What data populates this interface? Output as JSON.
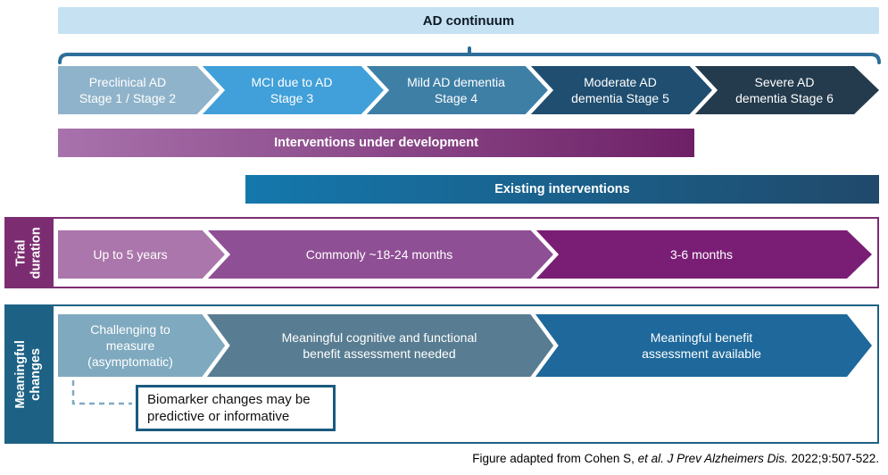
{
  "header": {
    "title": "AD continuum",
    "bg": "#C5E1F2",
    "text_color": "#0E1A26"
  },
  "brace": {
    "color": "#2E6E99"
  },
  "stages": {
    "items": [
      {
        "label": "Preclinical AD\nStage 1 / Stage 2",
        "color": "#8FB3CA"
      },
      {
        "label": "MCI due to AD\nStage 3",
        "color": "#41A0D9"
      },
      {
        "label": "Mild AD dementia\nStage 4",
        "color": "#3E7FA6"
      },
      {
        "label": "Moderate AD\ndementia Stage 5",
        "color": "#1F4E70"
      },
      {
        "label": "Severe AD\ndementia Stage 6",
        "color": "#243B4D"
      }
    ]
  },
  "interventions": {
    "development": {
      "label": "Interventions under development",
      "gradient": [
        "#A872AC",
        "#6E2066"
      ]
    },
    "existing": {
      "label": "Existing interventions",
      "gradient": [
        "#1478AC",
        "#20496B"
      ]
    }
  },
  "trial": {
    "sidebar_label": "Trial\nduration",
    "accent": "#7C2D72",
    "items": [
      {
        "label": "Up to 5 years",
        "color": "#AB76AB"
      },
      {
        "label": "Commonly ~18-24 months",
        "color": "#8F4F95"
      },
      {
        "label": "3-6 months",
        "color": "#7A1E75"
      }
    ]
  },
  "meaningful": {
    "sidebar_label": "Meaningful\nchanges",
    "accent": "#1D6285",
    "items": [
      {
        "label": "Challenging to\nmeasure\n(asymptomatic)",
        "color": "#7FA9BF"
      },
      {
        "label": "Meaningful cognitive and functional\nbenefit assessment needed",
        "color": "#587D92"
      },
      {
        "label": "Meaningful benefit\nassessment available",
        "color": "#1E689B"
      }
    ],
    "connector_color": "#7FA9C4",
    "callout": {
      "text": "Biomarker changes may be\npredictive or informative",
      "border_color": "#1A5B7F"
    }
  },
  "citation": {
    "prefix": "Figure adapted from Cohen S, ",
    "italic": "et al. J Prev Alzheimers Dis.",
    "suffix": " 2022;9:507-522."
  }
}
